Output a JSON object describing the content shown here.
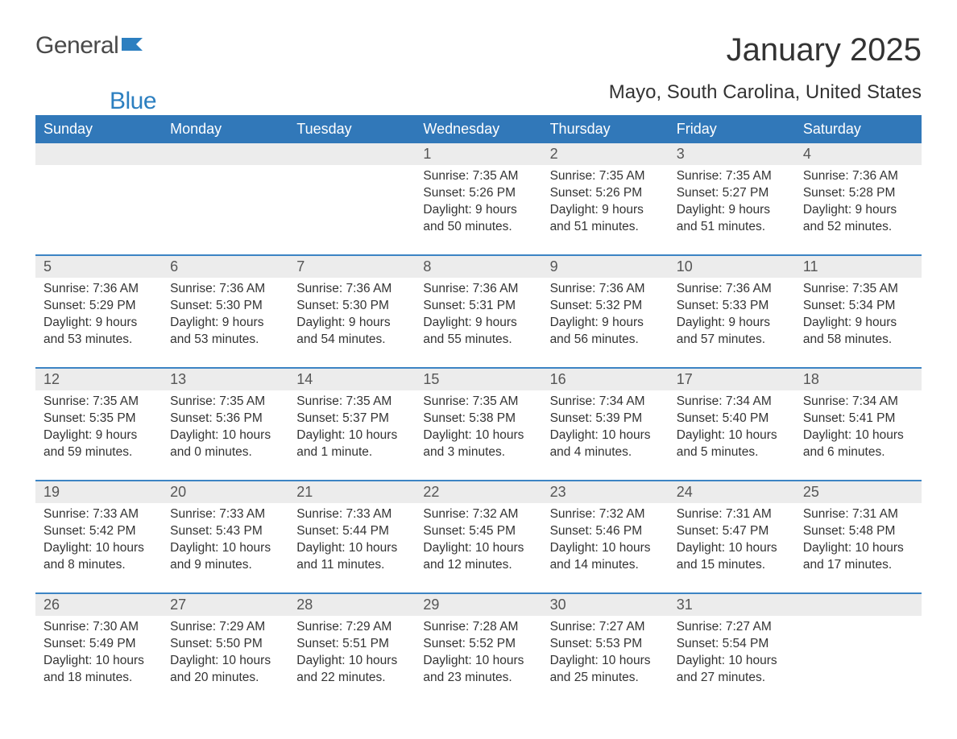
{
  "brand": {
    "word1": "General",
    "word2": "Blue"
  },
  "title": "January 2025",
  "location": "Mayo, South Carolina, United States",
  "colors": {
    "header_bg": "#3178b9",
    "header_text": "#ffffff",
    "row_sep": "#3c84c4",
    "daynum_bg": "#ececec",
    "text": "#333333",
    "page_bg": "#ffffff",
    "logo_blue": "#2c7fc0",
    "logo_gray": "#4a4a4a"
  },
  "typography": {
    "month_title_fontsize": 40,
    "location_fontsize": 24,
    "header_fontsize": 18,
    "daynum_fontsize": 18,
    "body_fontsize": 15.5,
    "logo_fontsize": 30
  },
  "weekdays": [
    "Sunday",
    "Monday",
    "Tuesday",
    "Wednesday",
    "Thursday",
    "Friday",
    "Saturday"
  ],
  "weeks": [
    [
      null,
      null,
      null,
      {
        "n": "1",
        "sr": "Sunrise: 7:35 AM",
        "ss": "Sunset: 5:26 PM",
        "dl": "Daylight: 9 hours and 50 minutes."
      },
      {
        "n": "2",
        "sr": "Sunrise: 7:35 AM",
        "ss": "Sunset: 5:26 PM",
        "dl": "Daylight: 9 hours and 51 minutes."
      },
      {
        "n": "3",
        "sr": "Sunrise: 7:35 AM",
        "ss": "Sunset: 5:27 PM",
        "dl": "Daylight: 9 hours and 51 minutes."
      },
      {
        "n": "4",
        "sr": "Sunrise: 7:36 AM",
        "ss": "Sunset: 5:28 PM",
        "dl": "Daylight: 9 hours and 52 minutes."
      }
    ],
    [
      {
        "n": "5",
        "sr": "Sunrise: 7:36 AM",
        "ss": "Sunset: 5:29 PM",
        "dl": "Daylight: 9 hours and 53 minutes."
      },
      {
        "n": "6",
        "sr": "Sunrise: 7:36 AM",
        "ss": "Sunset: 5:30 PM",
        "dl": "Daylight: 9 hours and 53 minutes."
      },
      {
        "n": "7",
        "sr": "Sunrise: 7:36 AM",
        "ss": "Sunset: 5:30 PM",
        "dl": "Daylight: 9 hours and 54 minutes."
      },
      {
        "n": "8",
        "sr": "Sunrise: 7:36 AM",
        "ss": "Sunset: 5:31 PM",
        "dl": "Daylight: 9 hours and 55 minutes."
      },
      {
        "n": "9",
        "sr": "Sunrise: 7:36 AM",
        "ss": "Sunset: 5:32 PM",
        "dl": "Daylight: 9 hours and 56 minutes."
      },
      {
        "n": "10",
        "sr": "Sunrise: 7:36 AM",
        "ss": "Sunset: 5:33 PM",
        "dl": "Daylight: 9 hours and 57 minutes."
      },
      {
        "n": "11",
        "sr": "Sunrise: 7:35 AM",
        "ss": "Sunset: 5:34 PM",
        "dl": "Daylight: 9 hours and 58 minutes."
      }
    ],
    [
      {
        "n": "12",
        "sr": "Sunrise: 7:35 AM",
        "ss": "Sunset: 5:35 PM",
        "dl": "Daylight: 9 hours and 59 minutes."
      },
      {
        "n": "13",
        "sr": "Sunrise: 7:35 AM",
        "ss": "Sunset: 5:36 PM",
        "dl": "Daylight: 10 hours and 0 minutes."
      },
      {
        "n": "14",
        "sr": "Sunrise: 7:35 AM",
        "ss": "Sunset: 5:37 PM",
        "dl": "Daylight: 10 hours and 1 minute."
      },
      {
        "n": "15",
        "sr": "Sunrise: 7:35 AM",
        "ss": "Sunset: 5:38 PM",
        "dl": "Daylight: 10 hours and 3 minutes."
      },
      {
        "n": "16",
        "sr": "Sunrise: 7:34 AM",
        "ss": "Sunset: 5:39 PM",
        "dl": "Daylight: 10 hours and 4 minutes."
      },
      {
        "n": "17",
        "sr": "Sunrise: 7:34 AM",
        "ss": "Sunset: 5:40 PM",
        "dl": "Daylight: 10 hours and 5 minutes."
      },
      {
        "n": "18",
        "sr": "Sunrise: 7:34 AM",
        "ss": "Sunset: 5:41 PM",
        "dl": "Daylight: 10 hours and 6 minutes."
      }
    ],
    [
      {
        "n": "19",
        "sr": "Sunrise: 7:33 AM",
        "ss": "Sunset: 5:42 PM",
        "dl": "Daylight: 10 hours and 8 minutes."
      },
      {
        "n": "20",
        "sr": "Sunrise: 7:33 AM",
        "ss": "Sunset: 5:43 PM",
        "dl": "Daylight: 10 hours and 9 minutes."
      },
      {
        "n": "21",
        "sr": "Sunrise: 7:33 AM",
        "ss": "Sunset: 5:44 PM",
        "dl": "Daylight: 10 hours and 11 minutes."
      },
      {
        "n": "22",
        "sr": "Sunrise: 7:32 AM",
        "ss": "Sunset: 5:45 PM",
        "dl": "Daylight: 10 hours and 12 minutes."
      },
      {
        "n": "23",
        "sr": "Sunrise: 7:32 AM",
        "ss": "Sunset: 5:46 PM",
        "dl": "Daylight: 10 hours and 14 minutes."
      },
      {
        "n": "24",
        "sr": "Sunrise: 7:31 AM",
        "ss": "Sunset: 5:47 PM",
        "dl": "Daylight: 10 hours and 15 minutes."
      },
      {
        "n": "25",
        "sr": "Sunrise: 7:31 AM",
        "ss": "Sunset: 5:48 PM",
        "dl": "Daylight: 10 hours and 17 minutes."
      }
    ],
    [
      {
        "n": "26",
        "sr": "Sunrise: 7:30 AM",
        "ss": "Sunset: 5:49 PM",
        "dl": "Daylight: 10 hours and 18 minutes."
      },
      {
        "n": "27",
        "sr": "Sunrise: 7:29 AM",
        "ss": "Sunset: 5:50 PM",
        "dl": "Daylight: 10 hours and 20 minutes."
      },
      {
        "n": "28",
        "sr": "Sunrise: 7:29 AM",
        "ss": "Sunset: 5:51 PM",
        "dl": "Daylight: 10 hours and 22 minutes."
      },
      {
        "n": "29",
        "sr": "Sunrise: 7:28 AM",
        "ss": "Sunset: 5:52 PM",
        "dl": "Daylight: 10 hours and 23 minutes."
      },
      {
        "n": "30",
        "sr": "Sunrise: 7:27 AM",
        "ss": "Sunset: 5:53 PM",
        "dl": "Daylight: 10 hours and 25 minutes."
      },
      {
        "n": "31",
        "sr": "Sunrise: 7:27 AM",
        "ss": "Sunset: 5:54 PM",
        "dl": "Daylight: 10 hours and 27 minutes."
      },
      null
    ]
  ]
}
